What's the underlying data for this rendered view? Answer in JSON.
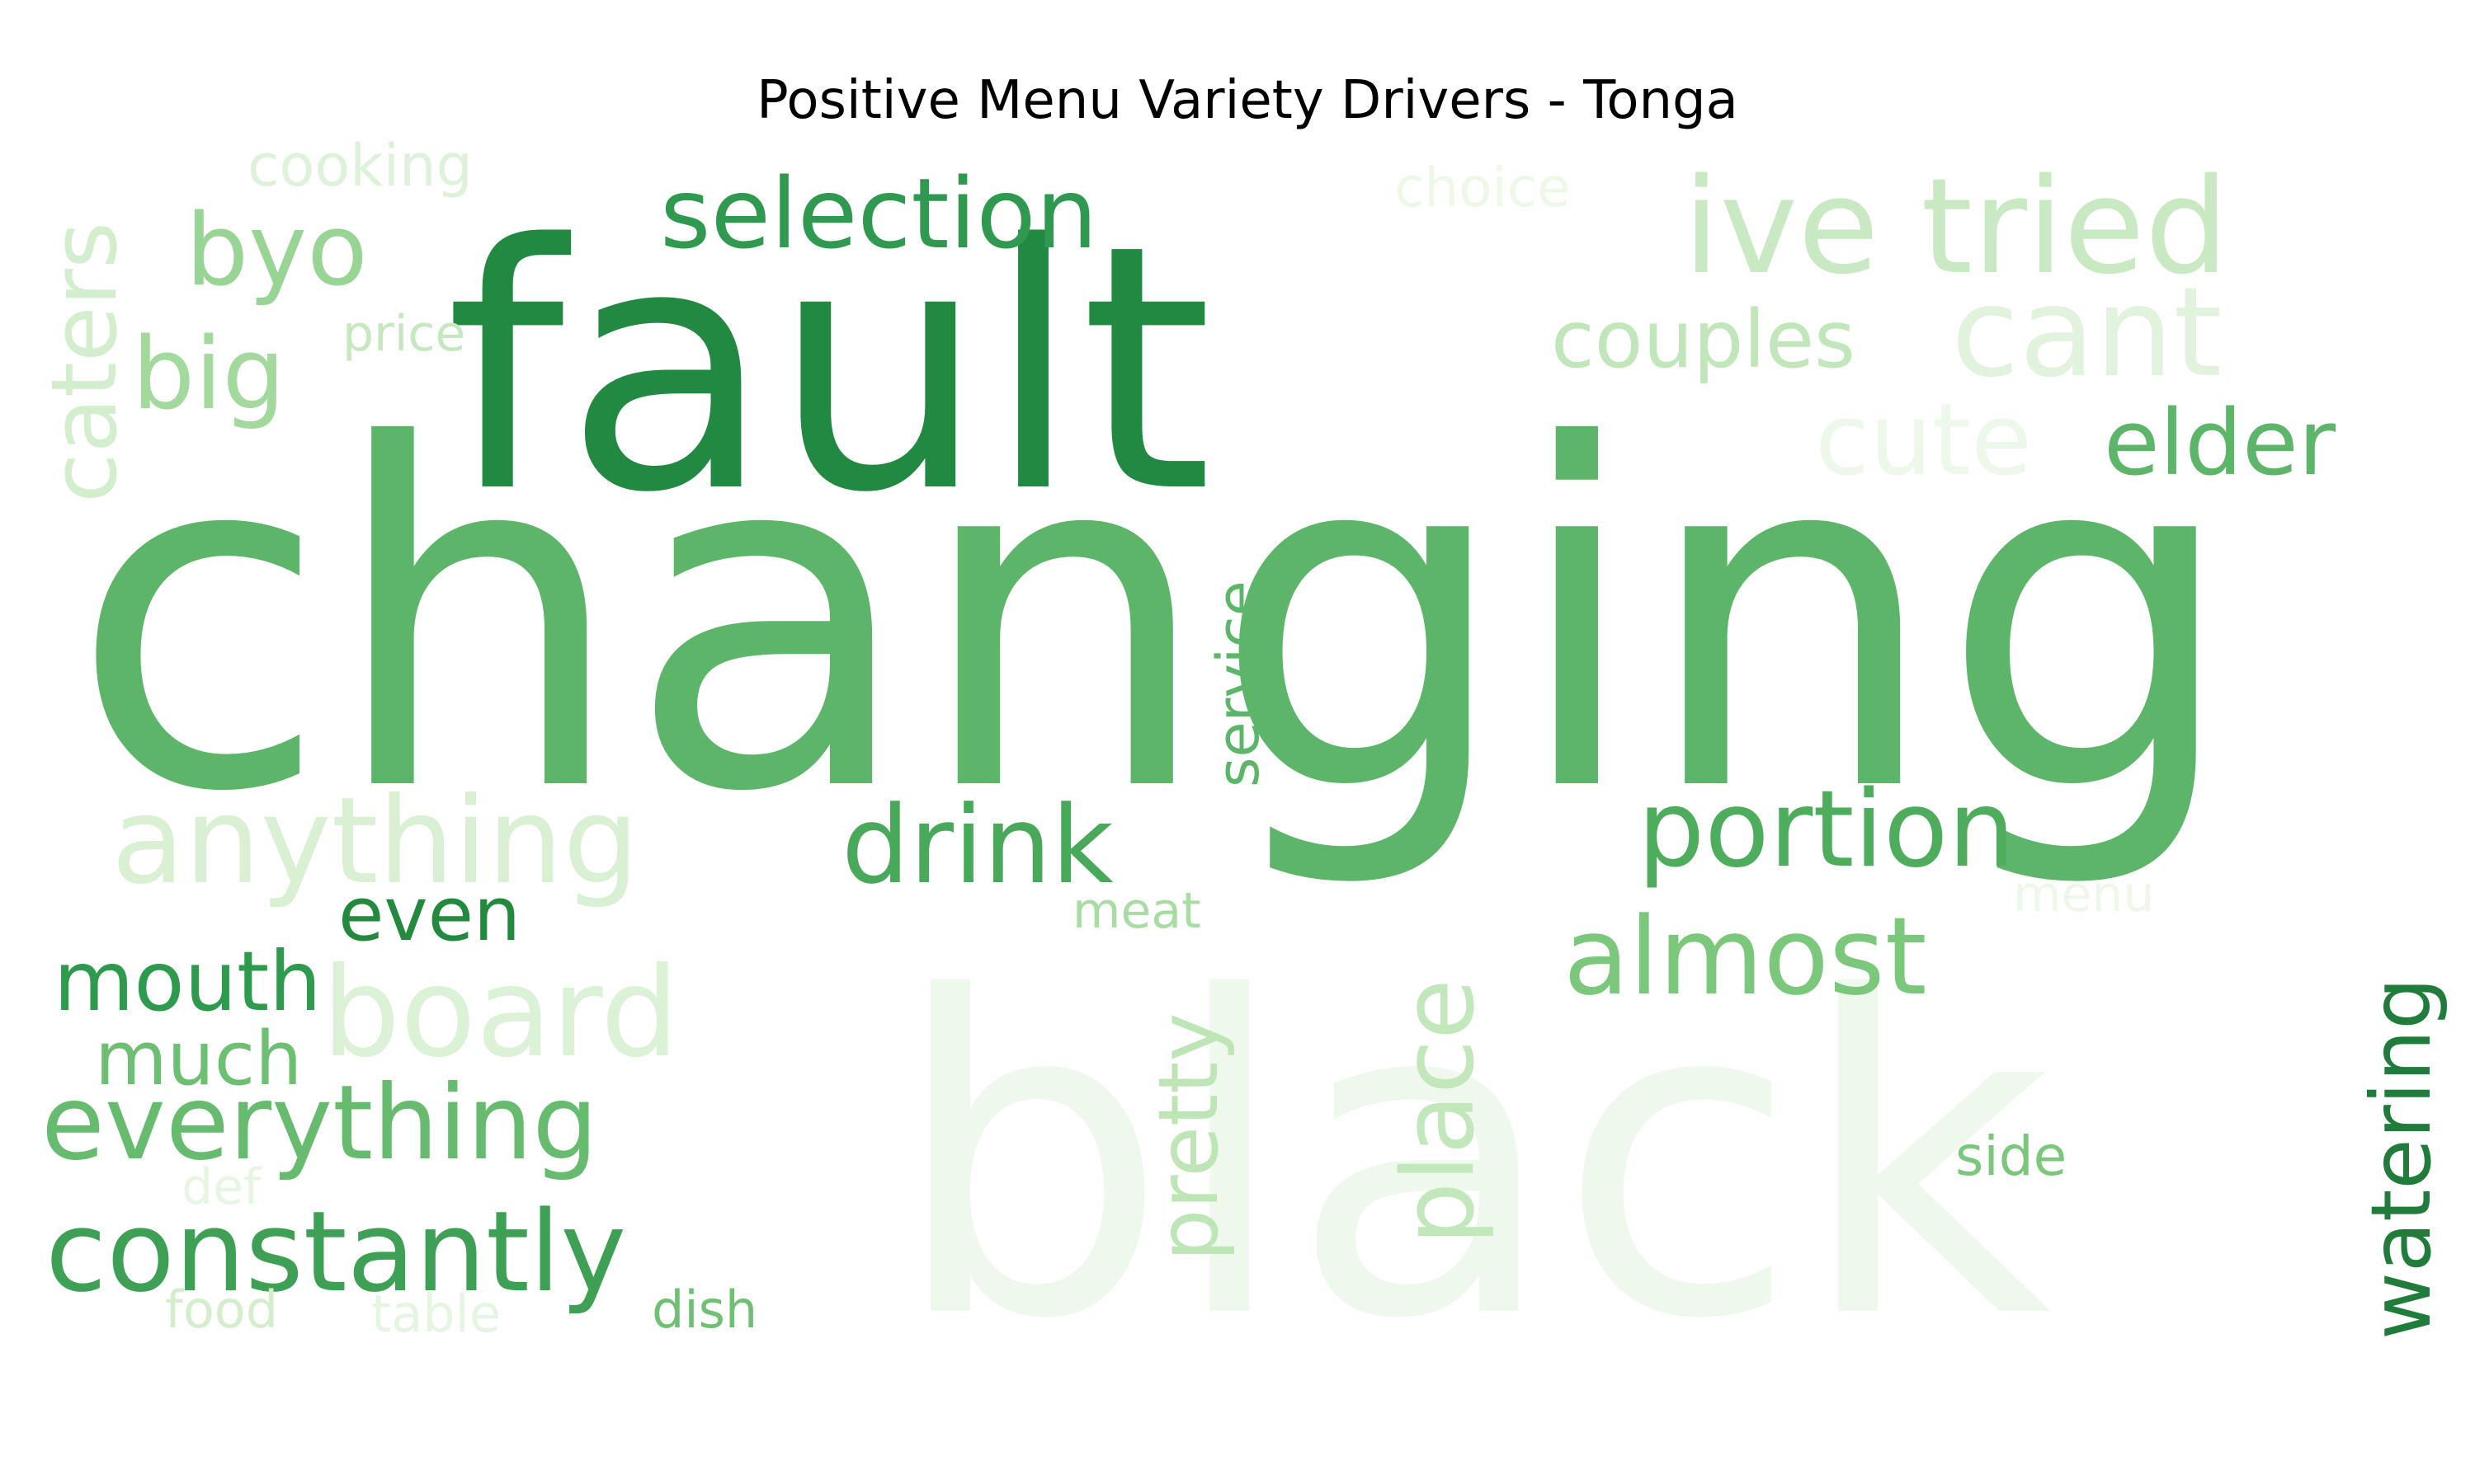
{
  "title": "Positive Menu Variety Drivers - Tonga",
  "words": [
    {
      "text": "changing",
      "color": "#5db56a"
    },
    {
      "text": "fault",
      "color": "#218941"
    },
    {
      "text": "black",
      "color": "#eff8ec"
    },
    {
      "text": "ive tried",
      "color": "#c8e9c1"
    },
    {
      "text": "cant",
      "color": "#e1f3dc"
    },
    {
      "text": "selection",
      "color": "#309950"
    },
    {
      "text": "byo",
      "color": "#98d594"
    },
    {
      "text": "big",
      "color": "#a4d99e"
    },
    {
      "text": "cooking",
      "color": "#def2d9"
    },
    {
      "text": "price",
      "color": "#c5e8bf"
    },
    {
      "text": "caters",
      "color": "#d3eecd"
    },
    {
      "text": "choice",
      "color": "#edf8e9"
    },
    {
      "text": "couples",
      "color": "#c0e6b9"
    },
    {
      "text": "cute",
      "color": "#eef8ea"
    },
    {
      "text": "elder",
      "color": "#5cb569"
    },
    {
      "text": "anything",
      "color": "#d9f0d3"
    },
    {
      "text": "drink",
      "color": "#48a95b"
    },
    {
      "text": "portion",
      "color": "#4dad5d"
    },
    {
      "text": "service",
      "color": "#5db56a"
    },
    {
      "text": "even",
      "color": "#23893e"
    },
    {
      "text": "meat",
      "color": "#a9dca3"
    },
    {
      "text": "menu",
      "color": "#eef8ea"
    },
    {
      "text": "mouth",
      "color": "#2e9a4e"
    },
    {
      "text": "board",
      "color": "#dcf2d7"
    },
    {
      "text": "much",
      "color": "#6dbf72"
    },
    {
      "text": "almost",
      "color": "#7bc87c"
    },
    {
      "text": "pretty",
      "color": "#bde5b6"
    },
    {
      "text": "place",
      "color": "#c2e7bb"
    },
    {
      "text": "everything",
      "color": "#66bb6f"
    },
    {
      "text": "watering",
      "color": "#1f7c3a"
    },
    {
      "text": "side",
      "color": "#7bc87c"
    },
    {
      "text": "def",
      "color": "#e7f6e3"
    },
    {
      "text": "constantly",
      "color": "#3ea055"
    },
    {
      "text": "food",
      "color": "#d4eecd"
    },
    {
      "text": "table",
      "color": "#e5f5e1"
    },
    {
      "text": "dish",
      "color": "#6fc073"
    }
  ]
}
